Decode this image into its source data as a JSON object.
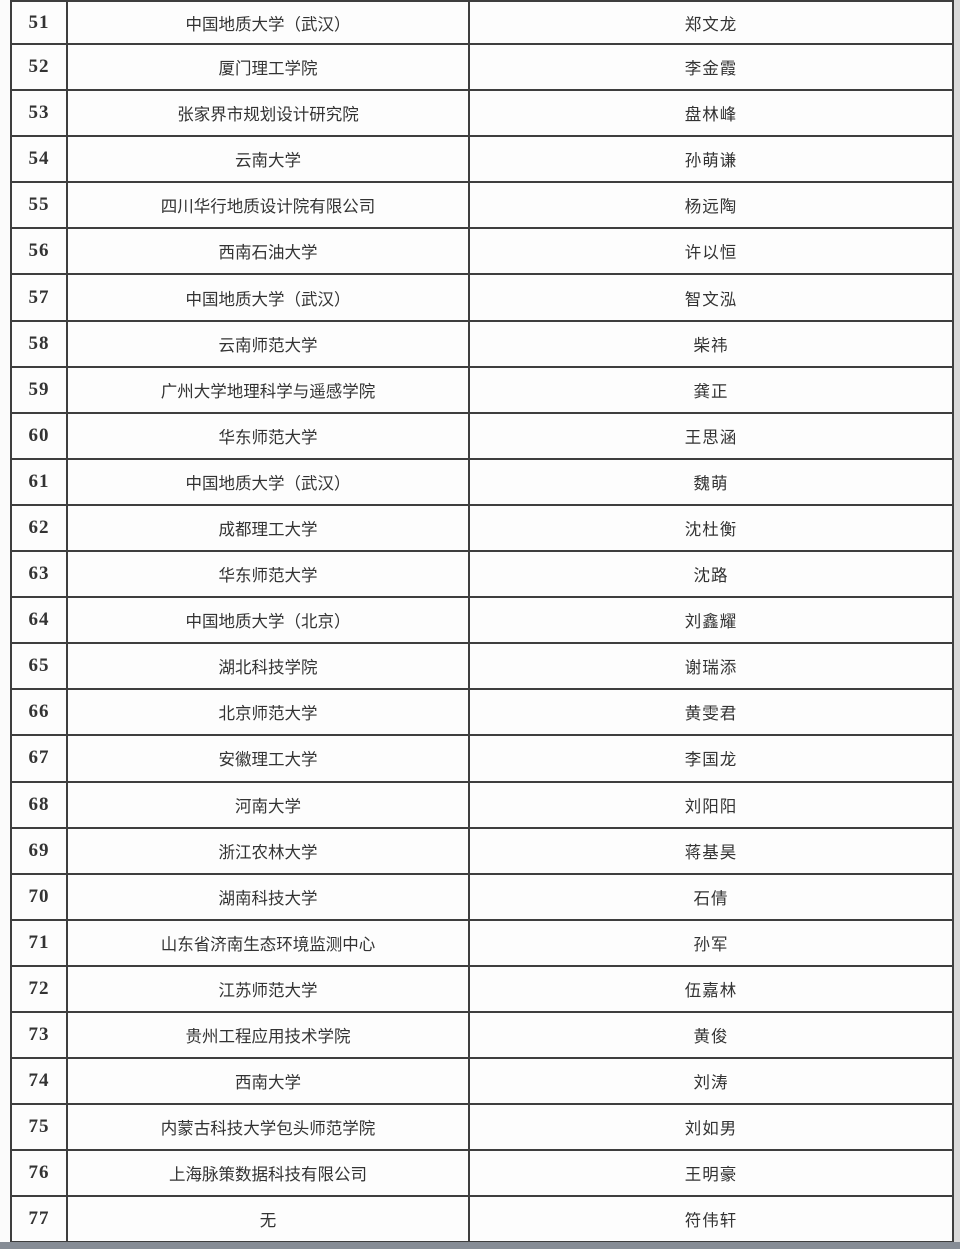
{
  "colors": {
    "grid_line": "#3e3e3e",
    "text": "#333333",
    "bottom_bar": "#868c95",
    "page_bg": "#fbfbfb",
    "edge_strip": "#d9d9d9"
  },
  "table": {
    "rows": [
      {
        "no": "51",
        "institution": "中国地质大学（武汉）",
        "name": "郑文龙"
      },
      {
        "no": "52",
        "institution": "厦门理工学院",
        "name": "李金霞"
      },
      {
        "no": "53",
        "institution": "张家界市规划设计研究院",
        "name": "盘林峰"
      },
      {
        "no": "54",
        "institution": "云南大学",
        "name": "孙萌谦"
      },
      {
        "no": "55",
        "institution": "四川华行地质设计院有限公司",
        "name": "杨远陶"
      },
      {
        "no": "56",
        "institution": "西南石油大学",
        "name": "许以恒"
      },
      {
        "no": "57",
        "institution": "中国地质大学（武汉）",
        "name": "智文泓"
      },
      {
        "no": "58",
        "institution": "云南师范大学",
        "name": "柴祎"
      },
      {
        "no": "59",
        "institution": "广州大学地理科学与遥感学院",
        "name": "龚正"
      },
      {
        "no": "60",
        "institution": "华东师范大学",
        "name": "王思涵"
      },
      {
        "no": "61",
        "institution": "中国地质大学（武汉）",
        "name": "魏萌"
      },
      {
        "no": "62",
        "institution": "成都理工大学",
        "name": "沈杜衡"
      },
      {
        "no": "63",
        "institution": "华东师范大学",
        "name": "沈路"
      },
      {
        "no": "64",
        "institution": "中国地质大学（北京）",
        "name": "刘鑫耀"
      },
      {
        "no": "65",
        "institution": "湖北科技学院",
        "name": "谢瑞添"
      },
      {
        "no": "66",
        "institution": "北京师范大学",
        "name": "黄雯君"
      },
      {
        "no": "67",
        "institution": "安徽理工大学",
        "name": "李国龙"
      },
      {
        "no": "68",
        "institution": "河南大学",
        "name": "刘阳阳"
      },
      {
        "no": "69",
        "institution": "浙江农林大学",
        "name": "蒋基昊"
      },
      {
        "no": "70",
        "institution": "湖南科技大学",
        "name": "石倩"
      },
      {
        "no": "71",
        "institution": "山东省济南生态环境监测中心",
        "name": "孙军"
      },
      {
        "no": "72",
        "institution": "江苏师范大学",
        "name": "伍嘉林"
      },
      {
        "no": "73",
        "institution": "贵州工程应用技术学院",
        "name": "黄俊"
      },
      {
        "no": "74",
        "institution": "西南大学",
        "name": "刘涛"
      },
      {
        "no": "75",
        "institution": "内蒙古科技大学包头师范学院",
        "name": "刘如男"
      },
      {
        "no": "76",
        "institution": "上海脉策数据科技有限公司",
        "name": "王明豪"
      },
      {
        "no": "77",
        "institution": "无",
        "name": "符伟轩"
      }
    ]
  }
}
